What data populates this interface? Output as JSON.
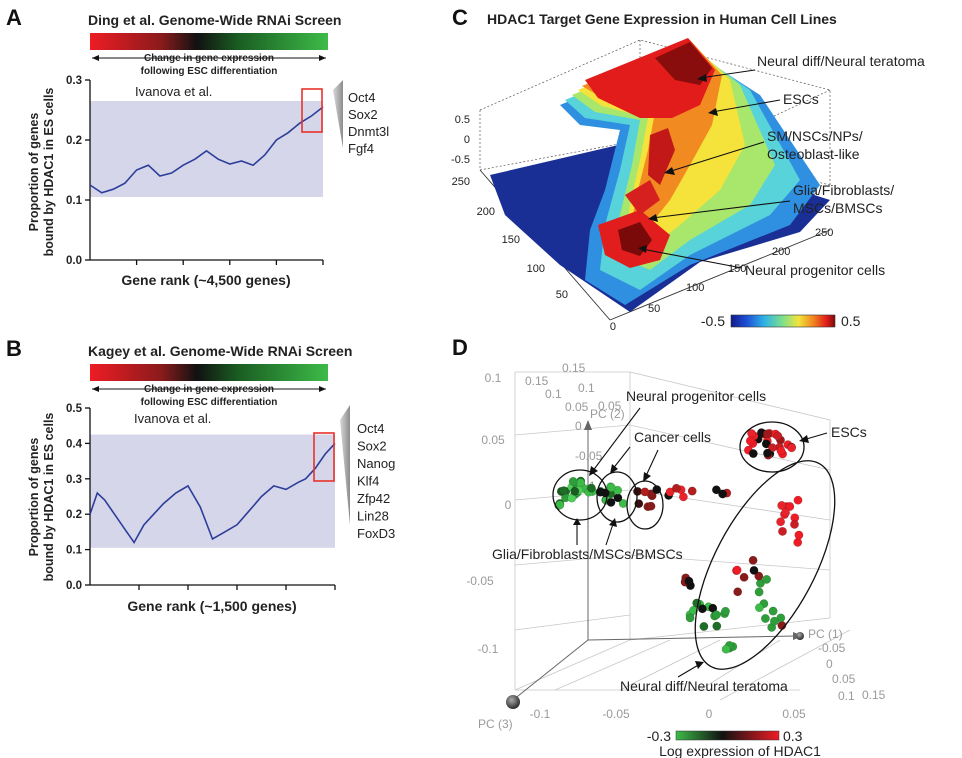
{
  "panels": {
    "A": {
      "letter": "A",
      "title": "Ding et al. Genome-Wide RNAi Screen",
      "bar_caption_1": "Change in gene expression",
      "bar_caption_2": "following ESC differentiation",
      "inset_label": "Ivanova et al.",
      "genes": [
        "Oct4",
        "Sox2",
        "Dnmt3l",
        "Fgf4"
      ]
    },
    "B": {
      "letter": "B",
      "title": "Kagey et al. Genome-Wide RNAi Screen",
      "bar_caption_1": "Change in gene expression",
      "bar_caption_2": "following ESC differentiation",
      "inset_label": "Ivanova et al.",
      "genes": [
        "Oct4",
        "Sox2",
        "Nanog",
        "Klf4",
        "Zfp42",
        "Lin28",
        "FoxD3"
      ]
    },
    "C": {
      "letter": "C",
      "title": "HDAC1 Target Gene Expression in Human Cell Lines",
      "annotations": [
        "Neural diff/Neural teratoma",
        "ESCs",
        "SM/NSCs/NPs/",
        "Osteoblast-like",
        "Glia/Fibroblasts/",
        "MSCs/BMSCs",
        "Neural progenitor cells"
      ],
      "z_ticks": [
        "0.5",
        "0",
        "-0.5"
      ],
      "left_ticks": [
        "250",
        "200",
        "150",
        "100",
        "50",
        "0"
      ],
      "right_ticks": [
        "250",
        "200",
        "150",
        "100",
        "50"
      ],
      "colorbar": {
        "min_label": "-0.5",
        "max_label": "0.5"
      }
    },
    "D": {
      "letter": "D",
      "annotations": [
        "Neural progenitor cells",
        "Cancer cells",
        "ESCs",
        "Glia/Fibroblasts/MSCs/BMSCs",
        "Neural diff/Neural teratoma"
      ],
      "axis_labels": [
        "PC (2)",
        "PC (1)",
        "PC (3)"
      ],
      "vertical_ticks": [
        "0.15",
        "0.1",
        "0.05",
        "0",
        "-0.05",
        "-0.1"
      ],
      "front_ticks": [
        "0.1",
        "0.05",
        "0",
        "-0.05",
        "-0.1"
      ],
      "bottom_ticks": [
        "-0.1",
        "-0.05",
        "0",
        "0.05"
      ],
      "right_ticks": [
        "-0.05",
        "0",
        "0.05",
        "0.1",
        "0.15"
      ],
      "top_ticks": [
        "0.15",
        "0.1",
        "0.05",
        "0",
        "-0.05"
      ],
      "colorbar": {
        "min_label": "-0.3",
        "max_label": "0.3",
        "title": "Log expression of HDAC1"
      }
    }
  },
  "colors": {
    "line": "#2c3e99",
    "shade": "#d6d6ea",
    "highlight": "#e8322b",
    "bar_red": "#ee1c25",
    "bar_green": "#3dbb48"
  },
  "chart_data": [
    {
      "type": "line",
      "panel": "A",
      "xlabel": "Gene rank (~4,500 genes)",
      "ylabel": "Proportion of genes bound by HDAC1 in ES cells",
      "ylim": [
        0,
        0.3
      ],
      "yticks": [
        "0.0",
        "0.1",
        "0.2",
        "0.3"
      ],
      "shaded_band": [
        0.105,
        0.265
      ],
      "x": [
        0,
        0.05,
        0.1,
        0.15,
        0.2,
        0.25,
        0.3,
        0.35,
        0.4,
        0.45,
        0.5,
        0.55,
        0.6,
        0.65,
        0.7,
        0.75,
        0.8,
        0.85,
        0.9,
        0.95,
        1.0
      ],
      "values": [
        0.125,
        0.112,
        0.118,
        0.128,
        0.15,
        0.158,
        0.14,
        0.145,
        0.158,
        0.168,
        0.182,
        0.168,
        0.16,
        0.165,
        0.158,
        0.175,
        0.2,
        0.212,
        0.228,
        0.24,
        0.255
      ]
    },
    {
      "type": "line",
      "panel": "B",
      "xlabel": "Gene rank (~1,500 genes)",
      "ylabel": "Proportion of genes bound by HDAC1 in ES cells",
      "ylim": [
        0,
        0.5
      ],
      "yticks": [
        "0.0",
        "0.1",
        "0.2",
        "0.3",
        "0.4",
        "0.5"
      ],
      "shaded_band": [
        0.105,
        0.425
      ],
      "x": [
        0,
        0.03,
        0.06,
        0.1,
        0.14,
        0.18,
        0.22,
        0.26,
        0.3,
        0.35,
        0.4,
        0.45,
        0.5,
        0.55,
        0.6,
        0.65,
        0.7,
        0.75,
        0.8,
        0.85,
        0.88,
        0.92,
        0.96,
        1.0
      ],
      "values": [
        0.2,
        0.26,
        0.24,
        0.2,
        0.16,
        0.12,
        0.17,
        0.2,
        0.23,
        0.26,
        0.28,
        0.22,
        0.13,
        0.15,
        0.17,
        0.21,
        0.25,
        0.28,
        0.27,
        0.29,
        0.3,
        0.33,
        0.37,
        0.4
      ]
    }
  ]
}
